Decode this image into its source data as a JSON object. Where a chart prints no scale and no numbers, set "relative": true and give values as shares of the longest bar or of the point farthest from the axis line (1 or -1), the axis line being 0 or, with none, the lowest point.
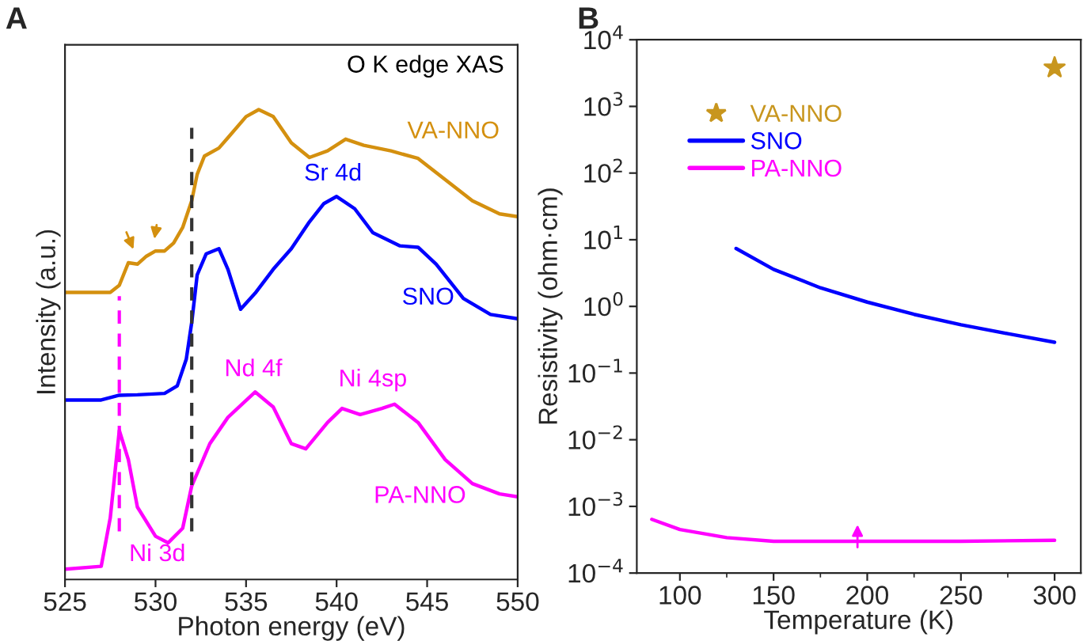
{
  "chart_data": [
    {
      "type": "line",
      "title": "A",
      "xlabel": "Photon energy (eV)",
      "ylabel": "Intensity (a.u.)",
      "relative": true,
      "tick_labels": "x",
      "legend": false,
      "grid": false,
      "xlim": [
        525,
        550
      ],
      "xticks": [
        525,
        530,
        535,
        540,
        545,
        550
      ],
      "series": [
        {
          "name": "VA-NNO",
          "color": "#d4900f",
          "x": [
            525,
            527.5,
            528,
            528.5,
            529,
            529.5,
            530,
            530.5,
            531,
            531.5,
            532,
            532.3,
            532.7,
            533.5,
            534,
            535,
            535.7,
            536.5,
            537.5,
            538.5,
            539.5,
            540.5,
            541.5,
            543,
            544.5,
            546,
            547.5,
            549,
            550
          ],
          "values": [
            0.611,
            0.611,
            0.626,
            0.674,
            0.671,
            0.688,
            0.699,
            0.699,
            0.716,
            0.749,
            0.806,
            0.862,
            0.901,
            0.918,
            0.94,
            0.985,
            1.0,
            0.985,
            0.929,
            0.898,
            0.912,
            0.937,
            0.924,
            0.912,
            0.896,
            0.851,
            0.806,
            0.778,
            0.772
          ]
        },
        {
          "name": "SNO",
          "color": "#0000ff",
          "x": [
            525,
            527,
            528,
            529,
            530.5,
            531.2,
            531.7,
            532,
            532.3,
            532.8,
            533.5,
            534,
            534.7,
            535.5,
            536.5,
            537.5,
            538.5,
            539.3,
            540,
            541,
            542,
            543.5,
            544.5,
            545.5,
            547,
            548.5,
            550
          ],
          "values": [
            0.382,
            0.382,
            0.392,
            0.393,
            0.396,
            0.412,
            0.469,
            0.547,
            0.648,
            0.693,
            0.704,
            0.66,
            0.575,
            0.609,
            0.66,
            0.704,
            0.761,
            0.8,
            0.815,
            0.789,
            0.738,
            0.71,
            0.707,
            0.671,
            0.598,
            0.564,
            0.555
          ]
        },
        {
          "name": "PA-NNO",
          "color": "#ff00ff",
          "x": [
            525,
            527,
            527.5,
            528,
            528.5,
            529,
            530,
            530.7,
            531.5,
            532,
            533,
            534,
            535.5,
            536.5,
            537.5,
            538.3,
            539.5,
            540.3,
            541.3,
            542.5,
            543.2,
            544.5,
            546,
            547.5,
            549,
            550
          ],
          "values": [
            0.022,
            0.028,
            0.131,
            0.317,
            0.255,
            0.154,
            0.092,
            0.078,
            0.109,
            0.199,
            0.289,
            0.345,
            0.399,
            0.367,
            0.289,
            0.278,
            0.334,
            0.364,
            0.351,
            0.364,
            0.373,
            0.334,
            0.255,
            0.204,
            0.182,
            0.176
          ]
        }
      ],
      "ref_lines": [
        {
          "axis": "x",
          "value": 528,
          "color": "#ff00ff",
          "line_style": "dashed"
        },
        {
          "axis": "x",
          "value": 532,
          "color": "#333333",
          "line_style": "dashed"
        }
      ],
      "annotations": [
        "O K edge XAS",
        "Sr 4d",
        "Nd 4f",
        "Ni 4sp",
        "Ni 3d"
      ]
    },
    {
      "type": "line",
      "title": "B",
      "xlabel": "Temperature (K)",
      "ylabel": "Resistivity (ohm·cm)",
      "log": "y",
      "legend": "top left",
      "grid": false,
      "xlim": [
        77,
        314
      ],
      "xticks": [
        100,
        150,
        200,
        250,
        300
      ],
      "ylim": [
        0.0001,
        10000
      ],
      "yticks": [
        {
          "value": 0.0001,
          "label": "10$^{−4}$"
        },
        {
          "value": 0.001,
          "label": "10$^{−3}$"
        },
        {
          "value": 0.01,
          "label": "10$^{−2}$"
        },
        {
          "value": 0.1,
          "label": "10$^{−1}$"
        },
        {
          "value": 1,
          "label": "10$^{0}$"
        },
        {
          "value": 10,
          "label": "10$^{1}$"
        },
        {
          "value": 100,
          "label": "10$^{2}$"
        },
        {
          "value": 1000,
          "label": "10$^{3}$"
        },
        {
          "value": 10000,
          "label": "10$^{4}$"
        }
      ],
      "series": [
        {
          "name": "VA-NNO",
          "type": "scatter",
          "marker": "star",
          "color": "#c8961e",
          "x": [
            300
          ],
          "values": [
            3800
          ]
        },
        {
          "name": "SNO",
          "color": "#0000ff",
          "x": [
            130,
            150,
            175,
            200,
            225,
            250,
            275,
            300
          ],
          "values": [
            7.4,
            3.6,
            1.9,
            1.16,
            0.76,
            0.53,
            0.39,
            0.29
          ]
        },
        {
          "name": "PA-NNO",
          "color": "#ff00ff",
          "x": [
            85,
            100,
            125,
            150,
            200,
            250,
            300
          ],
          "values": [
            0.00064,
            0.00045,
            0.00034,
            0.0003,
            0.0003,
            0.0003,
            0.00031
          ]
        }
      ]
    }
  ]
}
